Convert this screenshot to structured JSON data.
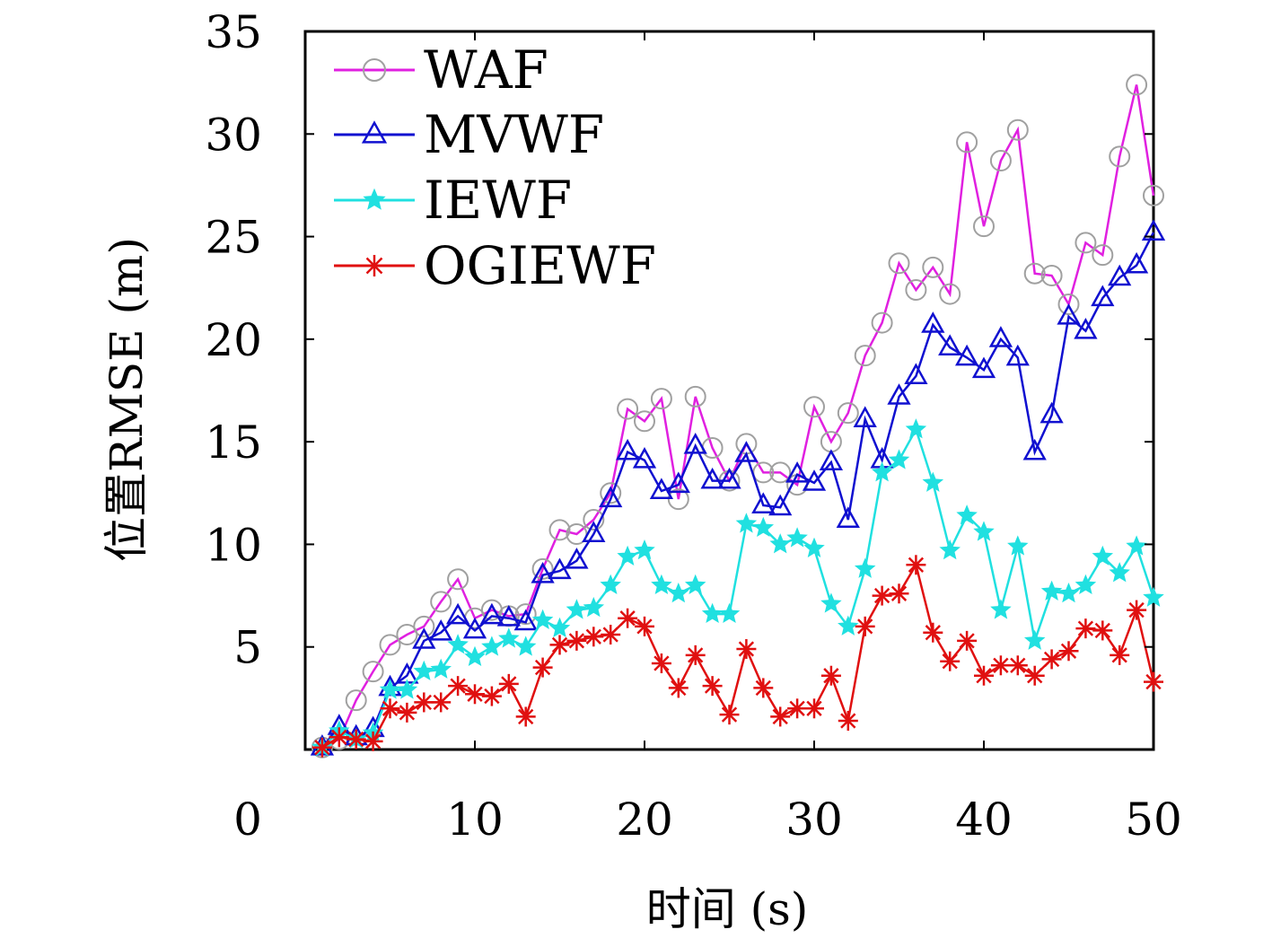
{
  "chart_data": {
    "type": "line",
    "title": "",
    "xlabel": "时间 (s)",
    "ylabel": "位置RMSE (m)",
    "xlim": [
      0,
      50
    ],
    "ylim": [
      0,
      35
    ],
    "xticks": [
      10,
      20,
      30,
      40,
      50
    ],
    "yticks": [
      5,
      10,
      15,
      20,
      25,
      30,
      35
    ],
    "origin_label": "0",
    "grid": false,
    "legend": "top-left",
    "x": [
      1,
      2,
      3,
      4,
      5,
      6,
      7,
      8,
      9,
      10,
      11,
      12,
      13,
      14,
      15,
      16,
      17,
      18,
      19,
      20,
      21,
      22,
      23,
      24,
      25,
      26,
      27,
      28,
      29,
      30,
      31,
      32,
      33,
      34,
      35,
      36,
      37,
      38,
      39,
      40,
      41,
      42,
      43,
      44,
      45,
      46,
      47,
      48,
      49,
      50
    ],
    "series": [
      {
        "name": "WAF",
        "color": "#e020e0",
        "marker_color": "#a0a0a0",
        "marker": "circle",
        "values": [
          0.1,
          0.5,
          2.4,
          3.8,
          5.1,
          5.6,
          6.0,
          7.2,
          8.3,
          6.4,
          6.8,
          6.5,
          6.6,
          8.8,
          10.7,
          10.5,
          11.2,
          12.5,
          16.6,
          16.0,
          17.1,
          12.2,
          17.2,
          14.7,
          13.1,
          14.9,
          13.5,
          13.5,
          12.9,
          16.7,
          15.0,
          16.4,
          19.2,
          20.8,
          23.7,
          22.4,
          23.5,
          22.2,
          29.6,
          25.5,
          28.7,
          30.2,
          23.2,
          23.1,
          21.7,
          24.7,
          24.1,
          28.9,
          32.4,
          27.0
        ]
      },
      {
        "name": "MVWF",
        "color": "#1010d0",
        "marker_color": "#1010d0",
        "marker": "triangle",
        "values": [
          0.1,
          1.1,
          0.6,
          1.0,
          3.0,
          3.6,
          5.3,
          5.7,
          6.5,
          5.8,
          6.5,
          6.4,
          6.2,
          8.5,
          8.7,
          9.2,
          10.5,
          12.2,
          14.5,
          14.1,
          12.6,
          12.9,
          14.8,
          13.1,
          13.1,
          14.4,
          11.9,
          11.8,
          13.4,
          13.0,
          14.0,
          11.2,
          16.1,
          14.1,
          17.2,
          18.2,
          20.7,
          19.6,
          19.1,
          18.5,
          20.0,
          19.1,
          14.5,
          16.3,
          21.1,
          20.4,
          22.0,
          23.0,
          23.6,
          25.2
        ]
      },
      {
        "name": "IEWF",
        "color": "#20e0e0",
        "marker_color": "#20e0e0",
        "marker": "star",
        "values": [
          0.1,
          0.9,
          0.5,
          0.8,
          2.9,
          2.9,
          3.8,
          3.9,
          5.1,
          4.5,
          5.0,
          5.4,
          5.0,
          6.3,
          5.9,
          6.8,
          6.9,
          8.0,
          9.4,
          9.7,
          8.0,
          7.6,
          8.0,
          6.6,
          6.6,
          11.0,
          10.8,
          10.0,
          10.3,
          9.8,
          7.1,
          6.0,
          8.8,
          13.5,
          14.1,
          15.6,
          13.0,
          9.7,
          11.4,
          10.6,
          6.8,
          9.9,
          5.3,
          7.7,
          7.6,
          8.0,
          9.4,
          8.6,
          9.9,
          7.4
        ]
      },
      {
        "name": "OGIEWF",
        "color": "#e01010",
        "marker_color": "#e01010",
        "marker": "asterisk",
        "values": [
          0.1,
          0.6,
          0.5,
          0.4,
          2.0,
          1.8,
          2.3,
          2.3,
          3.1,
          2.7,
          2.6,
          3.2,
          1.6,
          4.0,
          5.1,
          5.3,
          5.5,
          5.6,
          6.4,
          6.0,
          4.2,
          3.0,
          4.6,
          3.1,
          1.7,
          4.9,
          3.0,
          1.6,
          2.0,
          2.0,
          3.6,
          1.4,
          6.0,
          7.5,
          7.6,
          9.0,
          5.7,
          4.3,
          5.3,
          3.6,
          4.1,
          4.1,
          3.6,
          4.4,
          4.8,
          5.9,
          5.8,
          4.6,
          6.8,
          3.3
        ]
      }
    ]
  }
}
